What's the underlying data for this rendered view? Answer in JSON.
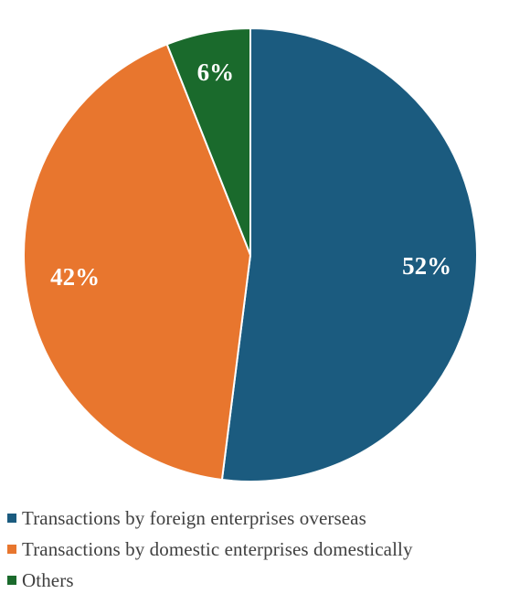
{
  "chart_data": {
    "type": "pie",
    "start_angle_deg": 0,
    "direction": "clockwise",
    "slices": [
      {
        "label": "Transactions by foreign enterprises overseas",
        "value": 52,
        "display": "52%",
        "color": "#1b5b7f"
      },
      {
        "label": "Transactions by domestic enterprises domestically",
        "value": 42,
        "display": "42%",
        "color": "#e8762e"
      },
      {
        "label": "Others",
        "value": 6,
        "display": "6%",
        "color": "#1a6a2c"
      }
    ],
    "slice_border_color": "#ffffff",
    "legend_position": "bottom-left",
    "title": ""
  }
}
